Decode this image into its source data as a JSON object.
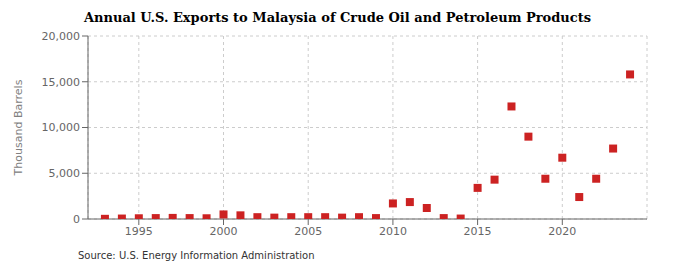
{
  "chart_data": {
    "type": "scatter",
    "title": "Annual U.S. Exports to Malaysia of Crude Oil and Petroleum Products",
    "y_label": "Thousand Barrels",
    "annotations": [
      "Source: U.S. Energy Information Administration"
    ],
    "x": [
      1993,
      1994,
      1995,
      1996,
      1997,
      1998,
      1999,
      2000,
      2001,
      2002,
      2003,
      2004,
      2005,
      2006,
      2007,
      2008,
      2009,
      2010,
      2011,
      2012,
      2013,
      2014,
      2015,
      2016,
      2017,
      2018,
      2019,
      2020,
      2021,
      2022,
      2023,
      2024
    ],
    "values": [
      20,
      50,
      80,
      100,
      120,
      100,
      80,
      500,
      400,
      200,
      150,
      200,
      200,
      200,
      150,
      200,
      100,
      1700,
      1850,
      1200,
      100,
      50,
      3400,
      4300,
      12300,
      9000,
      4400,
      6700,
      2400,
      4400,
      7700,
      15800
    ],
    "color": "#cc2222",
    "marker": "square",
    "xlim": [
      1992,
      2025
    ],
    "xticks": [
      1995,
      2000,
      2005,
      2010,
      2015,
      2020
    ],
    "ylim": [
      0,
      20000
    ],
    "yticks": [
      0,
      {
        "value": 5000,
        "label": "5,000"
      },
      {
        "value": 10000,
        "label": "10,000"
      },
      {
        "value": 15000,
        "label": "15,000"
      },
      {
        "value": 20000,
        "label": "20,000"
      }
    ],
    "grid": true
  }
}
